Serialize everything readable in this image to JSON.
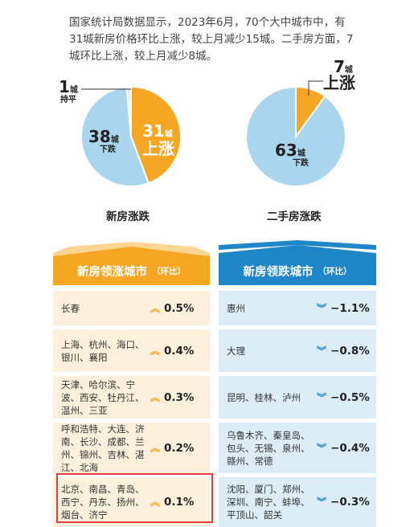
{
  "intro": "国家统计局数据显示，2023年6月，70个大中城市中，有31城新房价格环比上涨，较上月减少15城。二手房方面，7城环比上涨，较上月减少8城。",
  "colors": {
    "up": "#f5a623",
    "down": "#a9d5ef",
    "flat": "#e6eef3",
    "left_bg": "#fdf0dc",
    "right_bg": "#dcedf8",
    "right_accent": "#1f86c8",
    "highlight": "#e43d3d"
  },
  "chart_data": [
    {
      "type": "pie",
      "title": "新房涨跌",
      "slices": [
        {
          "label": "上涨",
          "value": 31,
          "unit": "城",
          "color": "#f5a623"
        },
        {
          "label": "下跌",
          "value": 38,
          "unit": "城",
          "color": "#a9d5ef"
        },
        {
          "label": "持平",
          "value": 1,
          "unit": "城",
          "color": "#e6eef3"
        }
      ]
    },
    {
      "type": "pie",
      "title": "二手房涨跌",
      "slices": [
        {
          "label": "上涨",
          "value": 7,
          "unit": "城",
          "color": "#f5a623"
        },
        {
          "label": "下跌",
          "value": 63,
          "unit": "城",
          "color": "#a9d5ef"
        }
      ]
    },
    {
      "type": "table",
      "title": "新房领涨城市",
      "subtitle": "（环比）",
      "rows": [
        {
          "cities": "长春",
          "value": "0.5%"
        },
        {
          "cities": "上海、杭州、海口、银川、襄阳",
          "value": "0.4%"
        },
        {
          "cities": "天津、哈尔滨、宁波、西安、牡丹江、温州、三亚",
          "value": "0.3%"
        },
        {
          "cities": "呼和浩特、大连、济南、长沙、成都、兰州、锦州、吉林、湛江、北海",
          "value": "0.2%"
        },
        {
          "cities": "北京、南昌、青岛、西宁、丹东、扬州、烟台、济宁",
          "value": "0.1%"
        }
      ]
    },
    {
      "type": "table",
      "title": "新房领跌城市",
      "subtitle": "（环比）",
      "rows": [
        {
          "cities": "惠州",
          "value": "−1.1%"
        },
        {
          "cities": "大理",
          "value": "−0.8%"
        },
        {
          "cities": "昆明、桂林、泸州",
          "value": "−0.5%"
        },
        {
          "cities": "乌鲁木齐、秦皇岛、包头、无锡、泉州、赣州、常德",
          "value": "−0.4%"
        },
        {
          "cities": "沈阳、厦门、郑州、深圳、南宁、蚌埠、平顶山、韶关",
          "value": "−0.3%"
        }
      ]
    }
  ],
  "labels": {
    "new_up_num": "31",
    "new_up_unit": "城",
    "new_up_text": "上涨",
    "new_down_num": "38",
    "new_down_unit": "城",
    "new_down_text": "下跌",
    "new_flat_num": "1",
    "new_flat_unit": "城",
    "new_flat_text": "持平",
    "used_up_num": "7",
    "used_up_unit": "城",
    "used_up_text": "上涨",
    "used_down_num": "63",
    "used_down_unit": "城",
    "used_down_text": "下跌"
  },
  "icons": {
    "up": "double-chevron-up-icon",
    "down": "double-chevron-down-icon"
  },
  "arrows": {
    "up": "︽",
    "down": "︾"
  }
}
